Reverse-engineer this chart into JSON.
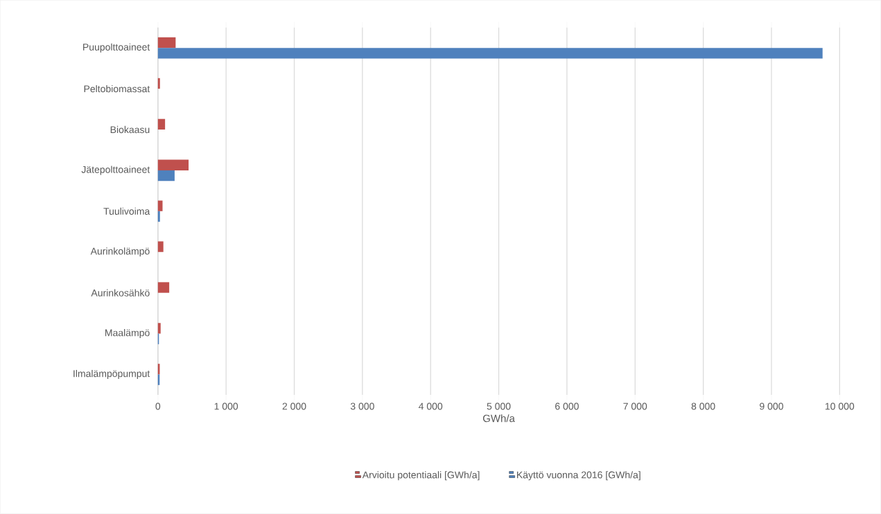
{
  "chart_data": {
    "type": "bar",
    "orientation": "horizontal",
    "xlabel": "GWh/a",
    "categories": [
      "Puupolttoaineet",
      "Peltobiomassat",
      "Biokaasu",
      "Jätepolttoaineet",
      "Tuulivoima",
      "Aurinkolämpö",
      "Aurinkosähkö",
      "Maalämpö",
      "Ilmalämpöpumput"
    ],
    "series": [
      {
        "name": "Arvioitu potentiaali [GWh/a]",
        "color": "#c0504d",
        "values": [
          260,
          30,
          105,
          450,
          68,
          80,
          166,
          40,
          27
        ]
      },
      {
        "name": "Käyttö vuonna 2016 [GWh/a]",
        "color": "#4f81bd",
        "values": [
          9750,
          0,
          0,
          245,
          30,
          0,
          0,
          15,
          25
        ]
      }
    ],
    "xlim": [
      0,
      10000
    ],
    "xticks": [
      0,
      {
        "value": 1000,
        "label": "1 000"
      },
      {
        "value": 2000,
        "label": "2 000"
      },
      {
        "value": 3000,
        "label": "3 000"
      },
      {
        "value": 4000,
        "label": "4 000"
      },
      {
        "value": 5000,
        "label": "5 000"
      },
      {
        "value": 6000,
        "label": "6 000"
      },
      {
        "value": 7000,
        "label": "7 000"
      },
      {
        "value": 8000,
        "label": "8 000"
      },
      {
        "value": 9000,
        "label": "9 000"
      },
      {
        "value": 10000,
        "label": "10 000"
      }
    ],
    "grid": "x",
    "legend": "bottom"
  }
}
